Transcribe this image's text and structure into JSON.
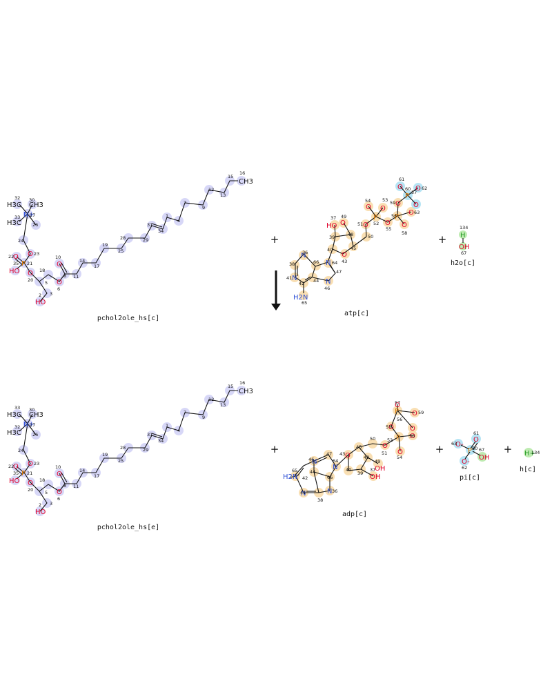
{
  "reaction": {
    "reactants": [
      {
        "id": "pchol2ole_hs_c",
        "label": "pchol2ole_hs[c]"
      },
      {
        "id": "atp_c",
        "label": "atp[c]"
      },
      {
        "id": "h2o_c",
        "label": "h2o[c]"
      }
    ],
    "products": [
      {
        "id": "pchol2ole_hs_e",
        "label": "pchol2ole_hs[e]"
      },
      {
        "id": "adp_c",
        "label": "adp[c]"
      },
      {
        "id": "pi_c",
        "label": "pi[c]"
      },
      {
        "id": "h_c",
        "label": "h[c]"
      }
    ],
    "plus_sign": "+",
    "colors": {
      "bond": "#111111",
      "oxygen": "#e0002a",
      "nitrogen": "#2d4fd6",
      "phosphorus": "#e07a00",
      "hydrogen_atom": "#2a9d2a",
      "highlight_lipid": "#c9c9f4",
      "highlight_nucleotide": "#f8d9a6",
      "highlight_phosphate": "#a9dff2",
      "highlight_water_proton": "#b7e9a8"
    }
  },
  "atom_labels": {
    "ch3": "CH3",
    "h3c": "H3C",
    "n_plus": "N+",
    "o": "O",
    "ho": "HO",
    "oh": "OH",
    "p": "P",
    "n": "N",
    "h2n": "H2N",
    "h": "H",
    "o_minus": "O-",
    "h_plus": "H+"
  },
  "atom_numbers": {
    "lipid_reactant": [
      "1",
      "2",
      "3",
      "4",
      "5",
      "6",
      "7",
      "8",
      "9",
      "10",
      "11",
      "12",
      "13",
      "14",
      "15",
      "16",
      "17",
      "18",
      "19",
      "20",
      "21",
      "22",
      "23",
      "24",
      "25",
      "26",
      "27",
      "28",
      "29",
      "30",
      "31",
      "32",
      "33",
      "34",
      "35"
    ],
    "atp": [
      "36",
      "37",
      "38",
      "39",
      "40",
      "41",
      "42",
      "43",
      "44",
      "45",
      "46",
      "47",
      "48",
      "49",
      "50",
      "51",
      "52",
      "53",
      "54",
      "55",
      "56",
      "57",
      "58",
      "59",
      "60",
      "61",
      "62",
      "63",
      "64",
      "65",
      "66"
    ],
    "water": [
      "134",
      "67"
    ],
    "adp": [
      "36",
      "37",
      "38",
      "39",
      "40",
      "41",
      "42",
      "43",
      "44",
      "45",
      "46",
      "47",
      "48",
      "49",
      "50",
      "51",
      "52",
      "54",
      "55",
      "56",
      "57",
      "58",
      "59",
      "64",
      "65",
      "66"
    ],
    "pi": [
      "60",
      "61",
      "62",
      "63",
      "67"
    ],
    "h": [
      "134"
    ]
  }
}
